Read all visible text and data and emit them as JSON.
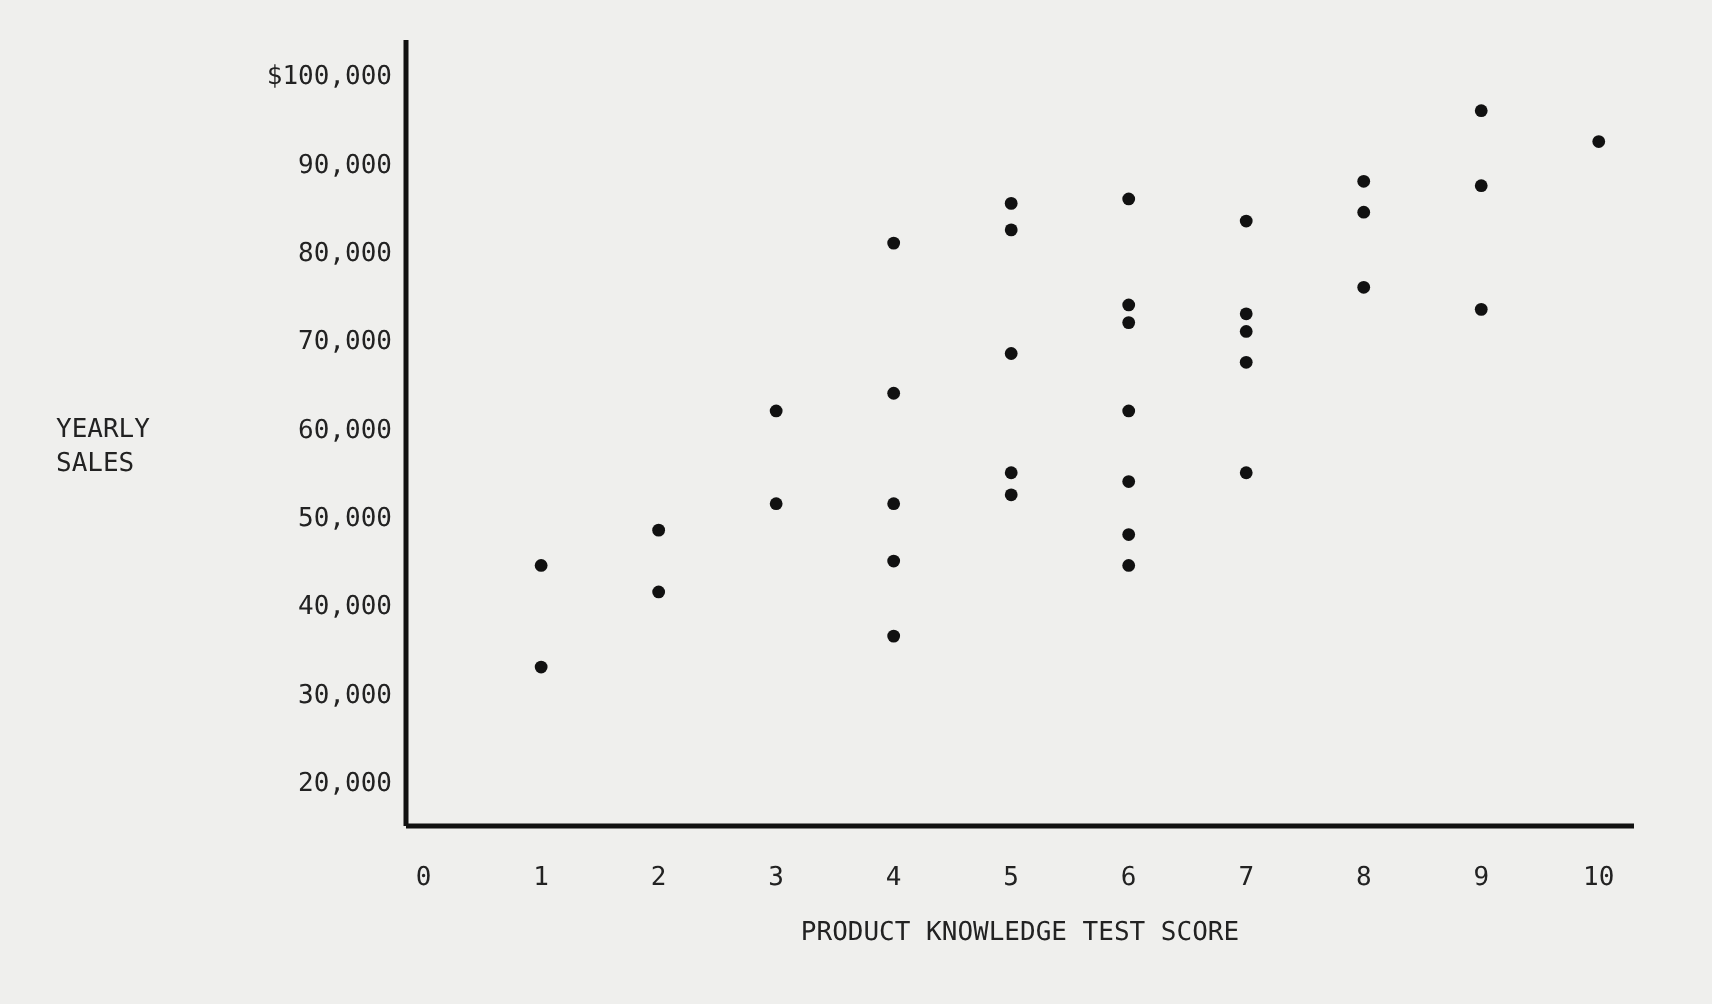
{
  "chart_data": {
    "type": "scatter",
    "xlabel": "PRODUCT KNOWLEDGE TEST SCORE",
    "ylabel": "YEARLY SALES",
    "marker": "circle",
    "grid": false,
    "xlim": [
      -0.15,
      10.3
    ],
    "xticks": [
      0,
      1,
      2,
      3,
      4,
      5,
      6,
      7,
      8,
      9,
      10
    ],
    "ylim": [
      15000,
      104000
    ],
    "yticks": [
      {
        "value": 20000,
        "label": "20,000"
      },
      {
        "value": 30000,
        "label": "30,000"
      },
      {
        "value": 40000,
        "label": "40,000"
      },
      {
        "value": 50000,
        "label": "50,000"
      },
      {
        "value": 60000,
        "label": "60,000"
      },
      {
        "value": 70000,
        "label": "70,000"
      },
      {
        "value": 80000,
        "label": "80,000"
      },
      {
        "value": 90000,
        "label": "90,000"
      },
      {
        "value": 100000,
        "label": "$100,000"
      }
    ],
    "series": [
      {
        "color": "#111111",
        "x": [
          1,
          1,
          2,
          2,
          3,
          3,
          4,
          4,
          4,
          4,
          4,
          5,
          5,
          5,
          5,
          5,
          6,
          6,
          6,
          6,
          6,
          6,
          6,
          7,
          7,
          7,
          7,
          7,
          8,
          8,
          8,
          9,
          9,
          9,
          10
        ],
        "values": [
          44500,
          33000,
          48500,
          41500,
          62000,
          51500,
          81000,
          64000,
          51500,
          45000,
          36500,
          85500,
          82500,
          68500,
          55000,
          52500,
          86000,
          74000,
          72000,
          62000,
          54000,
          48000,
          44500,
          83500,
          73000,
          71000,
          67500,
          55000,
          88000,
          84500,
          76000,
          96000,
          87500,
          73500,
          92500
        ]
      }
    ]
  }
}
